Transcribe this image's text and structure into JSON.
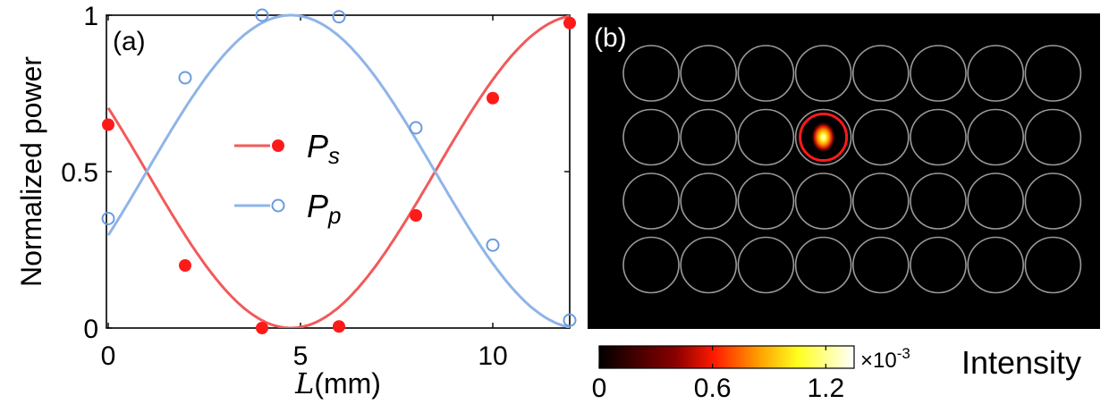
{
  "chart_data": [
    {
      "panel": "(a)",
      "type": "line",
      "xlabel_var": "L",
      "xlabel_unit": "(mm)",
      "ylabel": "Normalized power",
      "xlim": [
        0,
        12
      ],
      "ylim": [
        0,
        1
      ],
      "xticks": [
        0,
        5,
        10
      ],
      "xtick_labels": [
        "0",
        "5",
        "10"
      ],
      "yticks": [
        0,
        0.5,
        1
      ],
      "ytick_labels": [
        "0",
        "0.5",
        "1"
      ],
      "series": [
        {
          "name": "Ps",
          "label_main": "P",
          "label_sub": "s",
          "color": "#f25a5a",
          "marker": "filled-circle",
          "marker_color": "#ff1a1a",
          "points": [
            {
              "x": 0,
              "y": 0.65
            },
            {
              "x": 2,
              "y": 0.2
            },
            {
              "x": 4,
              "y": 0.0
            },
            {
              "x": 6,
              "y": 0.005
            },
            {
              "x": 8,
              "y": 0.36
            },
            {
              "x": 10,
              "y": 0.735
            },
            {
              "x": 12,
              "y": 0.975
            }
          ],
          "curve": {
            "type": "cos2",
            "x0": 4.75,
            "period": 15
          }
        },
        {
          "name": "Pp",
          "label_main": "P",
          "label_sub": "p",
          "color": "#8fb4e8",
          "marker": "open-circle",
          "marker_color": "#6b9be0",
          "points": [
            {
              "x": 0,
              "y": 0.35
            },
            {
              "x": 2,
              "y": 0.8
            },
            {
              "x": 4,
              "y": 1.0
            },
            {
              "x": 6,
              "y": 0.995
            },
            {
              "x": 8,
              "y": 0.64
            },
            {
              "x": 10,
              "y": 0.265
            },
            {
              "x": 12,
              "y": 0.025
            }
          ],
          "curve": {
            "type": "sin2",
            "x0": 4.75,
            "period": 15
          }
        }
      ]
    },
    {
      "panel": "(b)",
      "type": "heatmap",
      "grid_rows": 4,
      "grid_cols": 8,
      "highlight": {
        "row": 2,
        "col": 4
      },
      "colorbar": {
        "label": "Intensity",
        "multiplier": "×10",
        "exponent": "-3",
        "ticks": [
          0,
          0.6,
          1.2
        ],
        "tick_labels": [
          "0",
          "0.6",
          "1.2"
        ],
        "range": [
          0,
          1.35
        ]
      }
    }
  ]
}
